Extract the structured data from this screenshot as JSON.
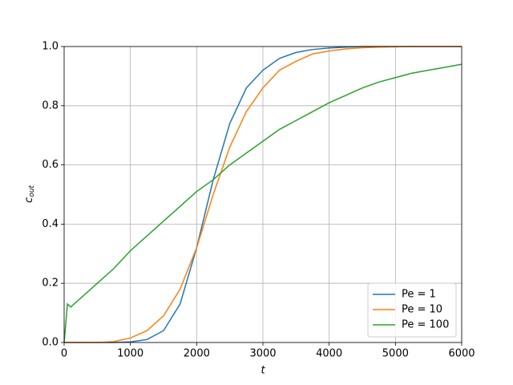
{
  "chart_data": {
    "type": "line",
    "xlabel": "t",
    "ylabel": "c",
    "ylabel_subscript": "out",
    "x": [
      0,
      50,
      100,
      250,
      500,
      750,
      1000,
      1250,
      1500,
      1750,
      2000,
      2250,
      2500,
      2750,
      3000,
      3250,
      3500,
      3750,
      4000,
      4250,
      4500,
      4750,
      5000,
      5250,
      5500,
      5750,
      6000
    ],
    "series": [
      {
        "name": "Pe = 1",
        "color": "#1f77b4",
        "values": [
          0,
          0,
          0,
          0,
          0,
          0,
          0.002,
          0.01,
          0.04,
          0.13,
          0.32,
          0.55,
          0.74,
          0.86,
          0.92,
          0.96,
          0.98,
          0.99,
          0.995,
          0.998,
          1.0,
          1.0,
          1.0,
          1.0,
          1.0,
          1.0,
          1.0
        ]
      },
      {
        "name": "Pe = 10",
        "color": "#ff7f0e",
        "values": [
          0,
          0,
          0,
          0,
          0,
          0.003,
          0.015,
          0.04,
          0.09,
          0.18,
          0.32,
          0.5,
          0.66,
          0.78,
          0.86,
          0.92,
          0.95,
          0.975,
          0.985,
          0.992,
          0.996,
          0.998,
          0.999,
          1.0,
          1.0,
          1.0,
          1.0
        ]
      },
      {
        "name": "Pe = 100",
        "color": "#2ca02c",
        "values": [
          0,
          0.13,
          0.12,
          0.15,
          0.2,
          0.25,
          0.31,
          0.36,
          0.41,
          0.46,
          0.51,
          0.55,
          0.6,
          0.64,
          0.68,
          0.72,
          0.75,
          0.78,
          0.81,
          0.835,
          0.86,
          0.88,
          0.895,
          0.91,
          0.92,
          0.93,
          0.94
        ]
      }
    ],
    "xlim": [
      0,
      6000
    ],
    "xticks": [
      0,
      1000,
      2000,
      3000,
      4000,
      5000,
      6000
    ],
    "ylim": [
      0,
      1
    ],
    "yticks": [
      {
        "value": 0,
        "label": "0.0"
      },
      {
        "value": 0.2,
        "label": "0.2"
      },
      {
        "value": 0.4,
        "label": "0.4"
      },
      {
        "value": 0.6,
        "label": "0.6"
      },
      {
        "value": 0.8,
        "label": "0.8"
      },
      {
        "value": 1,
        "label": "1.0"
      }
    ],
    "grid": true,
    "legend": "lower right"
  }
}
